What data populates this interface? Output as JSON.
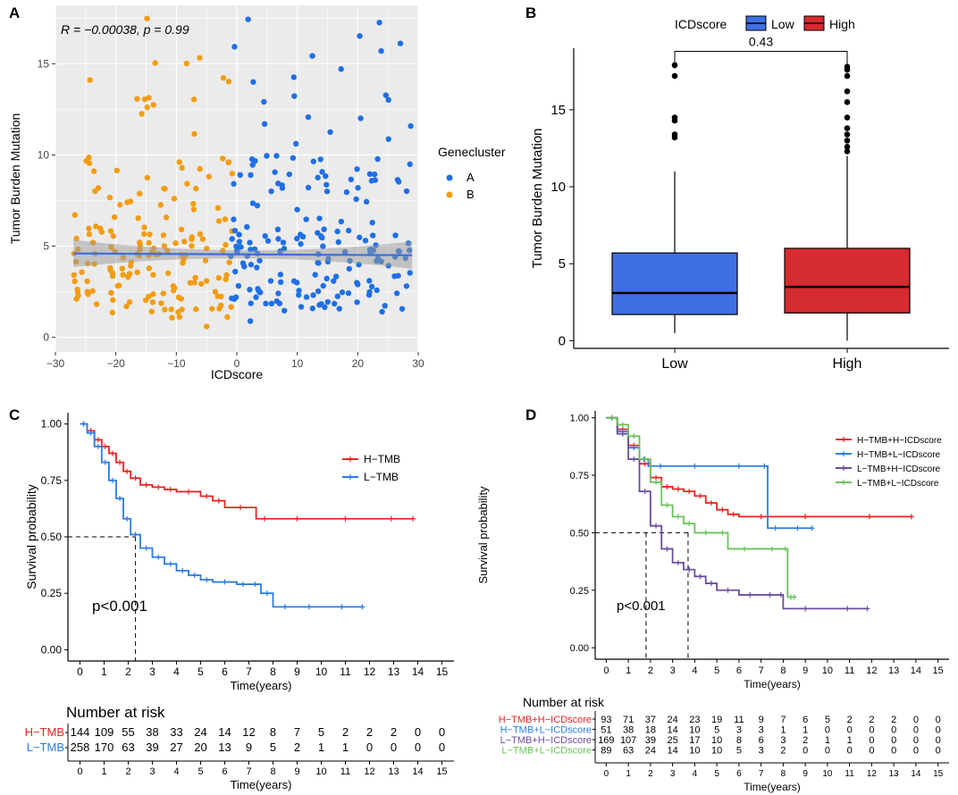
{
  "colors": {
    "cluster_a": "#1f6fe5",
    "cluster_b": "#f39c12",
    "low": "#3f6fe0",
    "high": "#d62b30",
    "h_tmb": "#ee2222",
    "l_tmb": "#2a7de1",
    "km_hh": "#ee2222",
    "km_hl": "#2a7de1",
    "km_lh": "#6a4f9c",
    "km_ll": "#6bc25a"
  },
  "chart_data": [
    {
      "panel": "A",
      "type": "scatter",
      "annotation_r": "R = −0.00038, p = 0.99",
      "xlabel": "ICDscore",
      "ylabel": "Tumor Burden Mutation",
      "xlim": [
        -30,
        30
      ],
      "ylim": [
        -0.8,
        18.2
      ],
      "xticks": [
        -30,
        -20,
        -10,
        0,
        10,
        20,
        30
      ],
      "yticks": [
        0,
        5,
        10,
        15
      ],
      "xtick_labels": [
        "−30",
        "−20",
        "−10",
        "0",
        "10",
        "20",
        "30"
      ],
      "ytick_labels": [
        "0",
        "5",
        "10",
        "15"
      ],
      "legend_title": "Genecluster",
      "legend": [
        "A",
        "B"
      ],
      "fit": {
        "x0": -27,
        "y0": 4.6,
        "x1": 29,
        "y1": 4.5,
        "band_min": 0.22,
        "band_max": 0.75
      },
      "seed": 7
    },
    {
      "panel": "B",
      "type": "boxplot",
      "legend_title": "ICDscore",
      "legend": [
        "Low",
        "High"
      ],
      "categories": [
        "Low",
        "High"
      ],
      "ylabel": "Tumor Burden Mutation",
      "ylim": [
        -0.5,
        19
      ],
      "yticks": [
        0,
        5,
        10,
        15
      ],
      "ytick_labels": [
        "0",
        "5",
        "10",
        "15"
      ],
      "pvalue": "0.43",
      "boxes": [
        {
          "name": "Low",
          "min": 0.5,
          "q1": 1.7,
          "median": 3.1,
          "q3": 5.7,
          "max": 11.0,
          "outliers": [
            13.2,
            13.4,
            14.3,
            14.5,
            17.2,
            17.9
          ]
        },
        {
          "name": "High",
          "min": 0.0,
          "q1": 1.8,
          "median": 3.5,
          "q3": 6.0,
          "max": 12.0,
          "outliers": [
            12.3,
            12.6,
            13.0,
            13.4,
            13.8,
            14.5,
            15.5,
            16.2,
            17.2,
            17.6,
            17.8
          ]
        }
      ]
    },
    {
      "panel": "C",
      "type": "line",
      "ylabel": "Survival probability",
      "xlabel": "Time(years)",
      "xlim": [
        -0.5,
        15.5
      ],
      "ylim": [
        -0.05,
        1.05
      ],
      "xticks": [
        0,
        1,
        2,
        3,
        4,
        5,
        6,
        7,
        8,
        9,
        10,
        11,
        12,
        13,
        14,
        15
      ],
      "xtick_labels": [
        "0",
        "1",
        "2",
        "3",
        "4",
        "5",
        "6",
        "7",
        "8",
        "9",
        "10",
        "11",
        "12",
        "13",
        "14",
        "15"
      ],
      "yticks": [
        0,
        0.25,
        0.5,
        0.75,
        1.0
      ],
      "ytick_labels": [
        "0.00",
        "0.25",
        "0.50",
        "0.75",
        "1.00"
      ],
      "pvalue": "p<0.001",
      "median_lines": [
        2.3
      ],
      "series": [
        {
          "name": "H−TMB",
          "x": [
            0,
            0.3,
            0.6,
            0.9,
            1.2,
            1.5,
            1.8,
            2.1,
            2.5,
            3,
            3.5,
            4,
            5,
            5.5,
            6,
            7.3,
            8,
            10,
            12,
            13.8
          ],
          "y": [
            1,
            0.97,
            0.93,
            0.9,
            0.87,
            0.83,
            0.79,
            0.76,
            0.73,
            0.72,
            0.71,
            0.7,
            0.68,
            0.66,
            0.63,
            0.58,
            0.58,
            0.58,
            0.58,
            0.58
          ]
        },
        {
          "name": "L−TMB",
          "x": [
            0,
            0.3,
            0.6,
            0.9,
            1.2,
            1.5,
            1.8,
            2.1,
            2.5,
            3,
            3.5,
            4,
            4.5,
            5,
            5.5,
            6.5,
            7,
            7.5,
            8,
            9,
            10,
            11.7
          ],
          "y": [
            1,
            0.96,
            0.9,
            0.83,
            0.75,
            0.67,
            0.58,
            0.51,
            0.45,
            0.41,
            0.38,
            0.35,
            0.33,
            0.31,
            0.3,
            0.29,
            0.29,
            0.25,
            0.19,
            0.19,
            0.19,
            0.19
          ]
        }
      ],
      "risk_table": {
        "title": "Number at risk",
        "xlabel": "Time(years)",
        "rows": [
          {
            "name": "H−TMB",
            "values": [
              "144",
              "109",
              "55",
              "38",
              "33",
              "24",
              "14",
              "12",
              "8",
              "7",
              "5",
              "2",
              "2",
              "2",
              "0",
              "0"
            ]
          },
          {
            "name": "L−TMB",
            "values": [
              "258",
              "170",
              "63",
              "39",
              "27",
              "20",
              "13",
              "9",
              "5",
              "2",
              "1",
              "1",
              "0",
              "0",
              "0",
              "0"
            ]
          }
        ]
      }
    },
    {
      "panel": "D",
      "type": "line",
      "ylabel": "Survival probability",
      "xlabel": "Time(years)",
      "xlim": [
        -0.5,
        15.5
      ],
      "ylim": [
        -0.05,
        1.03
      ],
      "xticks": [
        0,
        1,
        2,
        3,
        4,
        5,
        6,
        7,
        8,
        9,
        10,
        11,
        12,
        13,
        14,
        15
      ],
      "xtick_labels": [
        "0",
        "1",
        "2",
        "3",
        "4",
        "5",
        "6",
        "7",
        "8",
        "9",
        "10",
        "11",
        "12",
        "13",
        "14",
        "15"
      ],
      "yticks": [
        0,
        0.25,
        0.5,
        0.75,
        1.0
      ],
      "ytick_labels": [
        "0.00",
        "0.25",
        "0.50",
        "0.75",
        "1.00"
      ],
      "pvalue": "p<0.001",
      "median_lines": [
        1.8,
        3.7
      ],
      "series": [
        {
          "name": "H−TMB+H−ICDscore",
          "x": [
            0,
            0.5,
            1,
            1.5,
            2,
            2.5,
            3,
            3.5,
            4,
            4.5,
            5,
            5.5,
            6,
            8,
            10,
            13.8
          ],
          "y": [
            1,
            0.95,
            0.88,
            0.8,
            0.74,
            0.7,
            0.69,
            0.68,
            0.66,
            0.63,
            0.6,
            0.58,
            0.57,
            0.57,
            0.57,
            0.57
          ]
        },
        {
          "name": "H−TMB+L−ICDscore",
          "x": [
            0,
            0.5,
            1,
            1.5,
            1.9,
            3,
            5,
            7,
            7.3,
            8,
            9.3
          ],
          "y": [
            1,
            0.94,
            0.87,
            0.82,
            0.79,
            0.79,
            0.79,
            0.79,
            0.52,
            0.52,
            0.52
          ]
        },
        {
          "name": "L−TMB+H−ICDscore",
          "x": [
            0,
            0.5,
            1,
            1.5,
            2,
            2.5,
            3,
            3.5,
            4,
            4.5,
            5,
            6,
            7,
            7.8,
            8,
            10,
            11.8
          ],
          "y": [
            1,
            0.93,
            0.82,
            0.68,
            0.53,
            0.43,
            0.37,
            0.34,
            0.31,
            0.28,
            0.25,
            0.23,
            0.23,
            0.23,
            0.17,
            0.17,
            0.17
          ]
        },
        {
          "name": "L−TMB+L−ICDscore",
          "x": [
            0,
            0.5,
            1,
            1.5,
            2,
            2.5,
            3,
            3.5,
            4,
            5,
            5.5,
            7,
            8,
            8.2,
            8.5
          ],
          "y": [
            1,
            0.97,
            0.92,
            0.82,
            0.72,
            0.62,
            0.57,
            0.54,
            0.5,
            0.5,
            0.43,
            0.43,
            0.43,
            0.22,
            0.22
          ]
        }
      ],
      "risk_table": {
        "title": "Number at risk",
        "xlabel": "Time(years)",
        "rows": [
          {
            "name": "H−TMB+H−ICDscore",
            "values": [
              "93",
              "71",
              "37",
              "24",
              "23",
              "19",
              "11",
              "9",
              "7",
              "6",
              "5",
              "2",
              "2",
              "2",
              "0",
              "0"
            ]
          },
          {
            "name": "H−TMB+L−ICDscore",
            "values": [
              "51",
              "38",
              "18",
              "14",
              "10",
              "5",
              "3",
              "3",
              "1",
              "1",
              "0",
              "0",
              "0",
              "0",
              "0",
              "0"
            ]
          },
          {
            "name": "L−TMB+H−ICDscore",
            "values": [
              "169",
              "107",
              "39",
              "25",
              "17",
              "10",
              "8",
              "6",
              "3",
              "2",
              "1",
              "1",
              "0",
              "0",
              "0",
              "0"
            ]
          },
          {
            "name": "L−TMB+L−ICDscore",
            "values": [
              "89",
              "63",
              "24",
              "14",
              "10",
              "10",
              "5",
              "3",
              "2",
              "0",
              "0",
              "0",
              "0",
              "0",
              "0",
              "0"
            ]
          }
        ]
      }
    }
  ]
}
